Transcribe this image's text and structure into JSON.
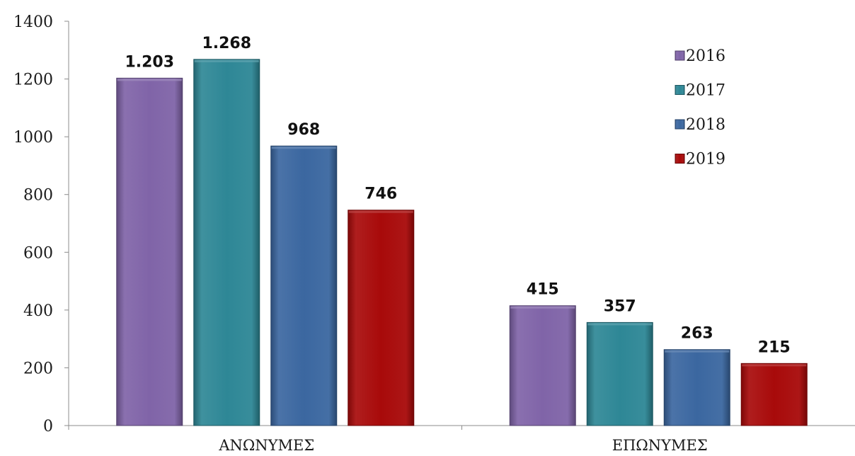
{
  "chart_data": {
    "type": "bar",
    "categories": [
      "ΑΝΩΝΥΜΕΣ",
      "ΕΠΩΝΥΜΕΣ"
    ],
    "series": [
      {
        "name": "2016",
        "values": [
          1203,
          415
        ],
        "labels": [
          "1.203",
          "415"
        ],
        "color": "#8064a8"
      },
      {
        "name": "2017",
        "values": [
          1268,
          357
        ],
        "labels": [
          "1.268",
          "357"
        ],
        "color": "#2e8796"
      },
      {
        "name": "2018",
        "values": [
          968,
          263
        ],
        "labels": [
          "968",
          "263"
        ],
        "color": "#3b67a0"
      },
      {
        "name": "2019",
        "values": [
          746,
          215
        ],
        "labels": [
          "746",
          "215"
        ],
        "color": "#a80a0a"
      }
    ],
    "y_ticks": [
      "0",
      "200",
      "400",
      "600",
      "800",
      "1000",
      "1200",
      "1400"
    ],
    "ylim": [
      0,
      1400
    ],
    "legend_position": "top-right",
    "grid": false,
    "title": "",
    "xlabel": "",
    "ylabel": ""
  }
}
